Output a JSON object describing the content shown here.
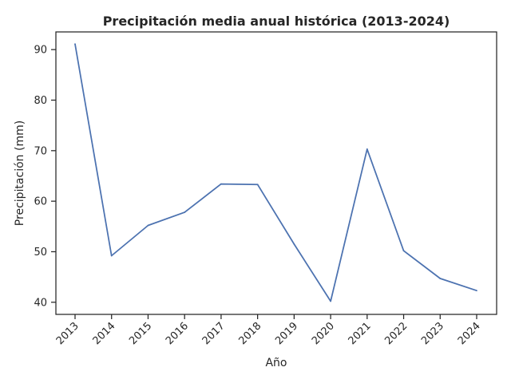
{
  "chart_data": {
    "type": "line",
    "title": "Precipitación media anual histórica (2013-2024)",
    "xlabel": "Año",
    "ylabel": "Precipitación (mm)",
    "categories": [
      "2013",
      "2014",
      "2015",
      "2016",
      "2017",
      "2018",
      "2019",
      "2020",
      "2021",
      "2022",
      "2023",
      "2024"
    ],
    "series": [
      {
        "values": [
          91.1,
          49.2,
          55.2,
          57.8,
          63.4,
          63.3,
          51.5,
          40.2,
          70.3,
          50.2,
          44.7,
          42.3
        ]
      }
    ],
    "yticks": [
      40,
      50,
      60,
      70,
      80,
      90
    ],
    "ylim": [
      37.6,
      93.5
    ],
    "grid": false,
    "line_color": "#4c72b0"
  }
}
